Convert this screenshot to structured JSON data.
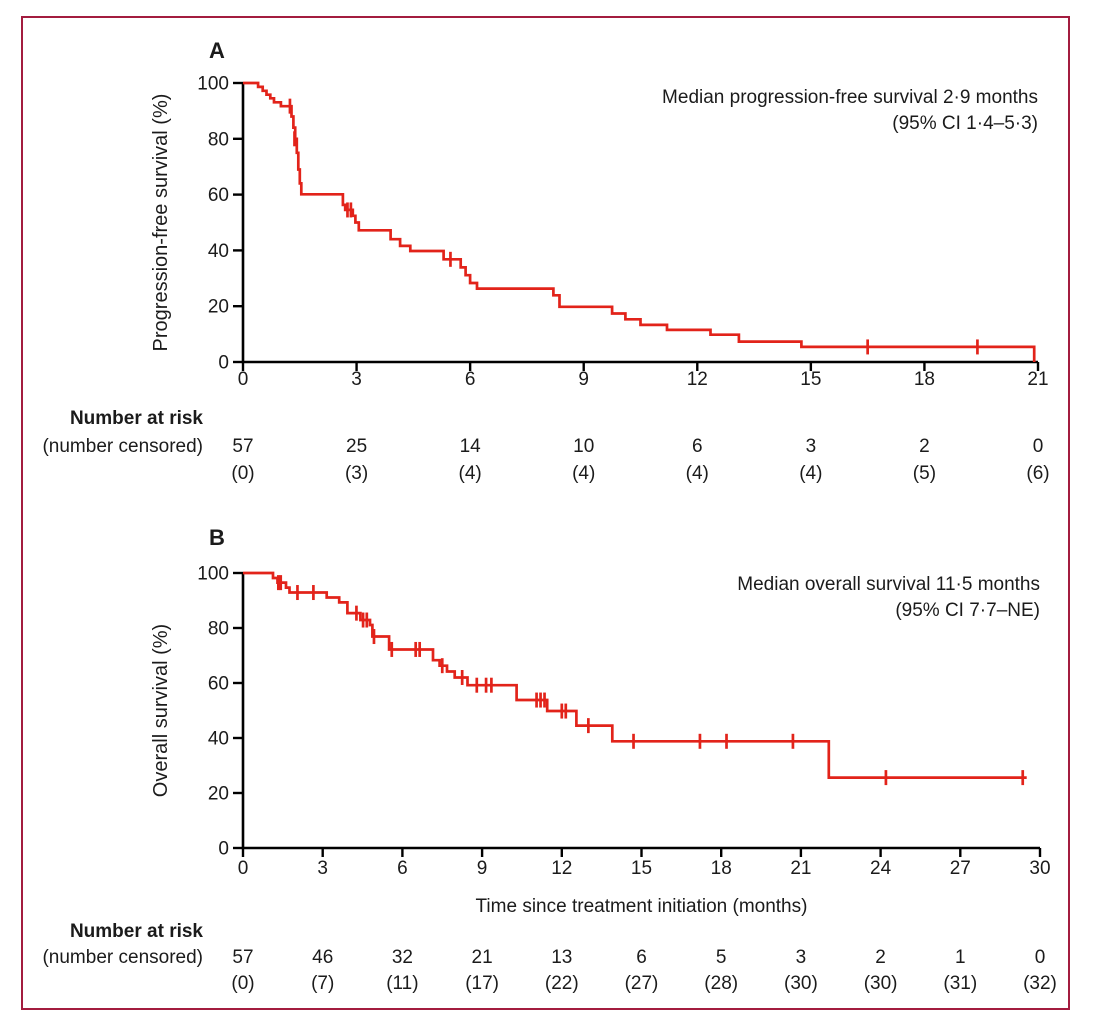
{
  "figure": {
    "frame_color": "#A31C3F",
    "curve_color": "#E2231A",
    "risk_header": "Number at risk",
    "risk_subheader": "(number censored)",
    "x_axis_label": "Time since treatment initiation (months)"
  },
  "chart_data": [
    {
      "type": "line",
      "subtype": "kaplan-meier-step",
      "panel_label": "A",
      "annotation": [
        "Median progression-free survival 2·9 months",
        "(95% CI 1·4–5·3)"
      ],
      "ylabel": "Progression-free survival (%)",
      "xlabel": "",
      "xlim": [
        0,
        21
      ],
      "ylim": [
        0,
        100
      ],
      "x_ticks": [
        0,
        3,
        6,
        9,
        12,
        15,
        18,
        21
      ],
      "y_ticks": [
        100,
        80,
        60,
        40,
        20,
        0
      ],
      "grid": false,
      "legend": "none",
      "series": [
        {
          "name": "Progression-free survival",
          "color": "#E2231A",
          "steps": [
            [
              0,
              100
            ],
            [
              0.4,
              98.6
            ],
            [
              0.52,
              97.2
            ],
            [
              0.62,
              95.8
            ],
            [
              0.72,
              94.5
            ],
            [
              0.82,
              93.1
            ],
            [
              1.0,
              91.7
            ],
            [
              1.28,
              88
            ],
            [
              1.33,
              84
            ],
            [
              1.38,
              80
            ],
            [
              1.42,
              75
            ],
            [
              1.46,
              69
            ],
            [
              1.5,
              64
            ],
            [
              1.54,
              60.1
            ],
            [
              2.64,
              56.3
            ],
            [
              2.7,
              54.5
            ],
            [
              2.9,
              52.4
            ],
            [
              2.97,
              50.0
            ],
            [
              3.06,
              47.2
            ],
            [
              3.9,
              44.0
            ],
            [
              4.15,
              41.6
            ],
            [
              4.42,
              39.8
            ],
            [
              5.3,
              36.8
            ],
            [
              5.75,
              33.9
            ],
            [
              5.88,
              31.1
            ],
            [
              6.0,
              28.3
            ],
            [
              6.18,
              26.3
            ],
            [
              8.2,
              23.9
            ],
            [
              8.36,
              19.8
            ],
            [
              9.75,
              17.4
            ],
            [
              10.1,
              15.3
            ],
            [
              10.5,
              13.3
            ],
            [
              11.2,
              11.5
            ],
            [
              12.35,
              9.8
            ],
            [
              13.1,
              7.3
            ],
            [
              14.75,
              5.4
            ],
            [
              20.9,
              0
            ]
          ],
          "censors": [
            [
              1.24,
              91.7
            ],
            [
              1.36,
              80.0
            ],
            [
              2.76,
              54.5
            ],
            [
              2.85,
              54.5
            ],
            [
              5.48,
              36.8
            ],
            [
              16.5,
              5.4
            ],
            [
              19.4,
              5.4
            ]
          ]
        }
      ],
      "at_risk_times": [
        0,
        3,
        6,
        9,
        12,
        15,
        18,
        21
      ],
      "number_at_risk": [
        "57",
        "25",
        "14",
        "10",
        "6",
        "3",
        "2",
        "0"
      ],
      "number_censored": [
        "(0)",
        "(3)",
        "(4)",
        "(4)",
        "(4)",
        "(4)",
        "(5)",
        "(6)"
      ]
    },
    {
      "type": "line",
      "subtype": "kaplan-meier-step",
      "panel_label": "B",
      "annotation": [
        "Median overall survival 11·5 months",
        "(95% CI 7·7–NE)"
      ],
      "ylabel": "Overall survival (%)",
      "xlabel": "Time since treatment initiation (months)",
      "xlim": [
        0,
        30
      ],
      "ylim": [
        0,
        100
      ],
      "x_ticks": [
        0,
        3,
        6,
        9,
        12,
        15,
        18,
        21,
        24,
        27,
        30
      ],
      "y_ticks": [
        100,
        80,
        60,
        40,
        20,
        0
      ],
      "grid": false,
      "legend": "none",
      "series": [
        {
          "name": "Overall survival",
          "color": "#E2231A",
          "steps": [
            [
              0,
              100
            ],
            [
              1.13,
              98.2
            ],
            [
              1.3,
              96.5
            ],
            [
              1.62,
              94.7
            ],
            [
              1.75,
              92.9
            ],
            [
              3.15,
              91.1
            ],
            [
              3.62,
              89.3
            ],
            [
              3.93,
              85.4
            ],
            [
              4.42,
              82.9
            ],
            [
              4.78,
              81.1
            ],
            [
              4.87,
              76.9
            ],
            [
              5.5,
              72.2
            ],
            [
              7.15,
              68.3
            ],
            [
              7.4,
              66.3
            ],
            [
              7.68,
              64.2
            ],
            [
              7.97,
              62.0
            ],
            [
              8.45,
              59.2
            ],
            [
              10.3,
              53.8
            ],
            [
              11.45,
              49.8
            ],
            [
              12.55,
              44.5
            ],
            [
              13.9,
              38.8
            ],
            [
              22.05,
              25.6
            ],
            [
              29.5,
              25.6
            ]
          ],
          "censors": [
            [
              1.33,
              96.5
            ],
            [
              1.42,
              96.5
            ],
            [
              2.05,
              92.9
            ],
            [
              2.65,
              92.9
            ],
            [
              4.27,
              85.4
            ],
            [
              4.52,
              82.9
            ],
            [
              4.66,
              82.9
            ],
            [
              4.93,
              76.9
            ],
            [
              5.6,
              72.2
            ],
            [
              6.5,
              72.2
            ],
            [
              6.65,
              72.2
            ],
            [
              7.5,
              66.3
            ],
            [
              8.25,
              62.0
            ],
            [
              8.8,
              59.2
            ],
            [
              9.15,
              59.2
            ],
            [
              9.35,
              59.2
            ],
            [
              11.05,
              53.8
            ],
            [
              11.2,
              53.8
            ],
            [
              11.35,
              53.8
            ],
            [
              12.0,
              49.8
            ],
            [
              12.15,
              49.8
            ],
            [
              13.0,
              44.5
            ],
            [
              14.7,
              38.8
            ],
            [
              17.2,
              38.8
            ],
            [
              18.2,
              38.8
            ],
            [
              20.7,
              38.8
            ],
            [
              24.2,
              25.6
            ],
            [
              29.35,
              25.6
            ]
          ]
        }
      ],
      "at_risk_times": [
        0,
        3,
        6,
        9,
        12,
        15,
        18,
        21,
        24,
        27,
        30
      ],
      "number_at_risk": [
        "57",
        "46",
        "32",
        "21",
        "13",
        "6",
        "5",
        "3",
        "2",
        "1",
        "0"
      ],
      "number_censored": [
        "(0)",
        "(7)",
        "(11)",
        "(17)",
        "(22)",
        "(27)",
        "(28)",
        "(30)",
        "(30)",
        "(31)",
        "(32)"
      ]
    }
  ]
}
